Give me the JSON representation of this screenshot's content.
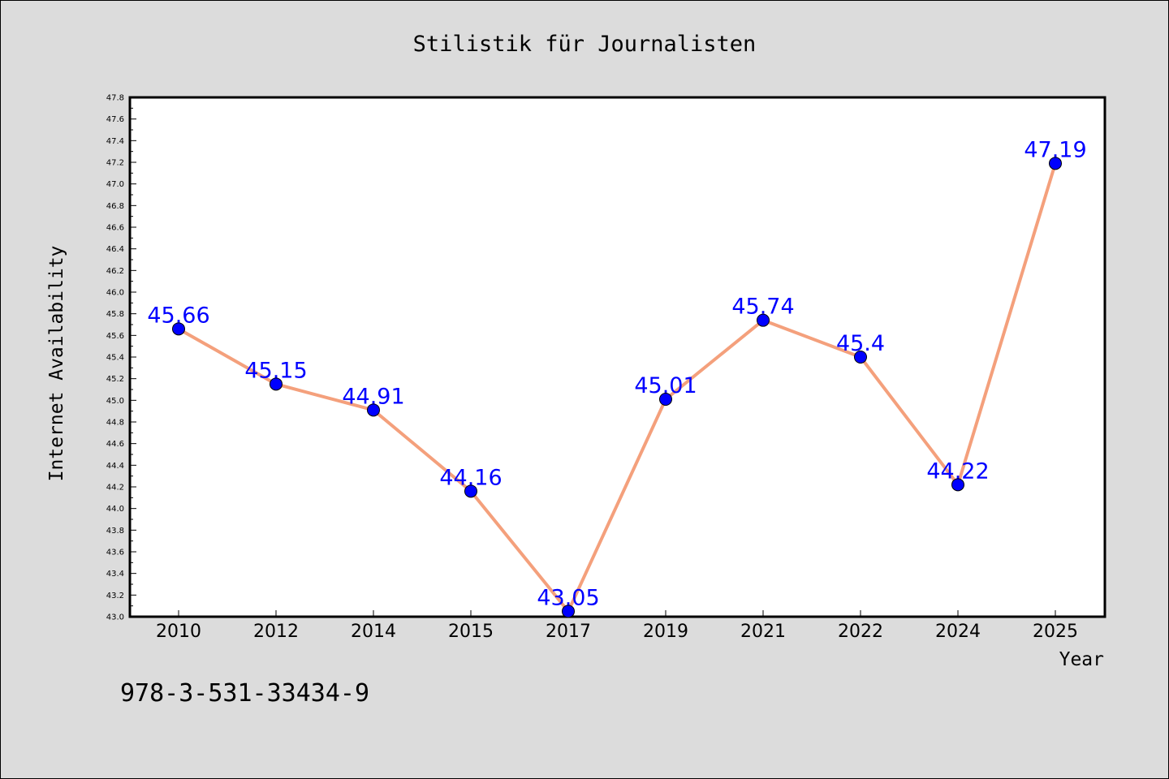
{
  "chart_data": {
    "type": "line",
    "title": "Stilistik für Journalisten",
    "xlabel": "Year",
    "ylabel": "Internet Availability",
    "categories": [
      "2010",
      "2012",
      "2014",
      "2015",
      "2017",
      "2019",
      "2021",
      "2022",
      "2024",
      "2025"
    ],
    "series": [
      {
        "values": [
          45.66,
          45.15,
          44.91,
          44.16,
          43.05,
          45.01,
          45.74,
          45.4,
          44.22,
          47.19
        ],
        "data_labels": [
          "45.66",
          "45.15",
          "44.91",
          "44.16",
          "43.05",
          "45.01",
          "45.74",
          "45.4",
          "44.22",
          "47.19"
        ]
      }
    ],
    "ylim": [
      43.0,
      47.8
    ],
    "y_major_ticks": [
      "43.0",
      "43.2",
      "43.4",
      "43.6",
      "43.8",
      "44.0",
      "44.2",
      "44.4",
      "44.6",
      "44.8",
      "45.0",
      "45.2",
      "45.4",
      "45.6",
      "45.8",
      "46.0",
      "46.2",
      "46.4",
      "46.6",
      "46.8",
      "47.0",
      "47.2",
      "47.4",
      "47.6",
      "47.8"
    ],
    "y_minor_step": 0.1,
    "grid": false,
    "legend": "none",
    "colors": {
      "line": "#f4a07c",
      "marker": "#0000ff",
      "data_label": "#0000ff",
      "plot_background": "#ffffff",
      "figure_background": "#dcdcdc"
    }
  },
  "footer": {
    "isbn": "978-3-531-33434-9"
  }
}
